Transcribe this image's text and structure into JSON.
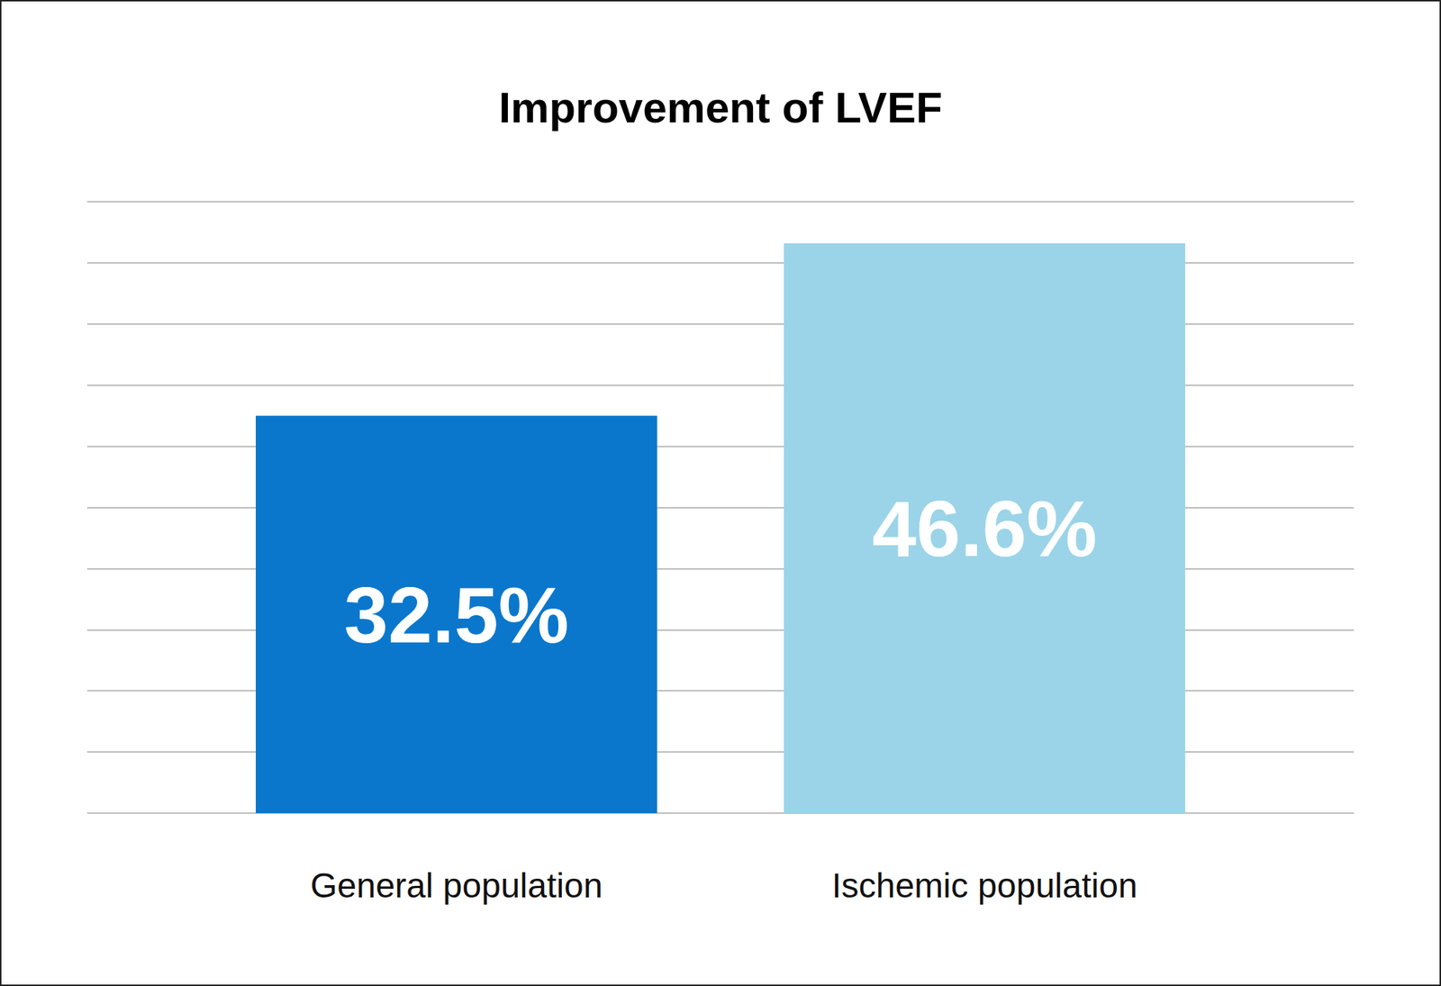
{
  "chart_data": {
    "type": "bar",
    "title": "Improvement of LVEF",
    "categories": [
      "General population",
      "Ischemic population"
    ],
    "values": [
      32.5,
      46.6
    ],
    "value_labels": [
      "32.5%",
      "46.6%"
    ],
    "colors": [
      "#0a77cc",
      "#9bd4e8"
    ],
    "ylim": [
      0,
      50
    ],
    "yticks": [
      0,
      5,
      10,
      15,
      20,
      25,
      30,
      35,
      40,
      45,
      50
    ],
    "grid": true,
    "data_labels": true,
    "tick_labels": false
  }
}
